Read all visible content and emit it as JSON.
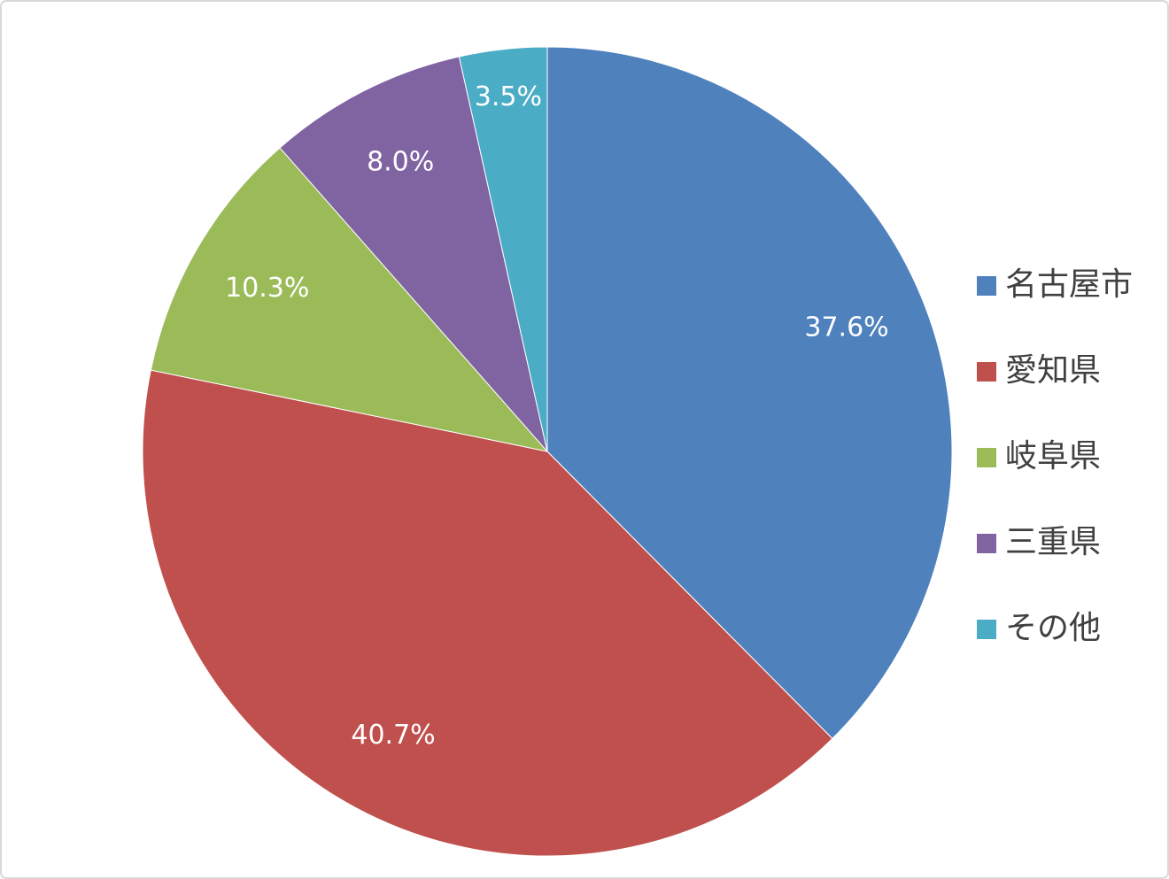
{
  "chart_data": {
    "type": "pie",
    "categories": [
      "名古屋市",
      "愛知県",
      "岐阜県",
      "三重県",
      "その他"
    ],
    "values": [
      37.6,
      40.7,
      10.3,
      8.0,
      3.5
    ],
    "value_labels": [
      "37.6%",
      "40.7%",
      "10.3%",
      "8.0%",
      "3.5%"
    ],
    "colors": [
      "#4f81bd",
      "#c0504d",
      "#9bbb59",
      "#8064a2",
      "#4bacc6"
    ],
    "legend": "right"
  }
}
